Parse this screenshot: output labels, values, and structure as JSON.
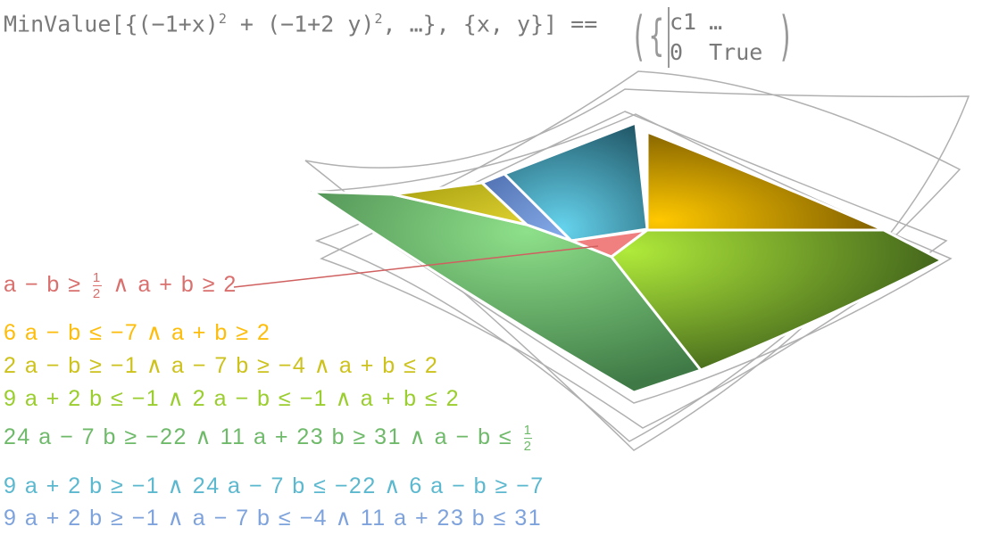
{
  "title": {
    "expr": "MinValue[{(−1+x)",
    "exp1": "2",
    "mid": " + (−1+2 y)",
    "exp2": "2",
    "tail": ", …}, {x, y}] ==",
    "matrix": [
      [
        "c1",
        "…"
      ],
      [
        "0",
        "True"
      ]
    ]
  },
  "labels": [
    {
      "text": "a − b ≥ ",
      "frac": [
        "1",
        "2"
      ],
      "after": " ∧ a + b ≥ 2",
      "color": "#d9706e"
    },
    {
      "text": "6 a − b ≤ −7 ∧ a + b ≥ 2",
      "color": "#fdbd0a"
    },
    {
      "text": "2 a − b ≥ −1 ∧ a − 7 b ≥ −4 ∧ a + b ≤ 2",
      "color": "#cdc21c"
    },
    {
      "text": "9 a + 2 b ≤ −1 ∧ 2 a − b ≤ −1 ∧ a + b ≤ 2",
      "color": "#9acd2e"
    },
    {
      "text": "24 a − 7 b ≥ −22 ∧ 11 a + 23 b ≥ 31 ∧ a − b ≤ ",
      "frac": [
        "1",
        "2"
      ],
      "after": "",
      "color": "#6fba6a"
    },
    {
      "text": "9 a + 2 b ≥ −1 ∧ 24 a − 7 b ≤ −22 ∧ 6 a − b ≥ −7",
      "color": "#5bb8cf"
    },
    {
      "text": "9 a + 2 b ≥ −1 ∧ a − 7 b ≤ −4 ∧ 11 a + 23 b ≤ 31",
      "color": "#7ea3dc"
    }
  ]
}
